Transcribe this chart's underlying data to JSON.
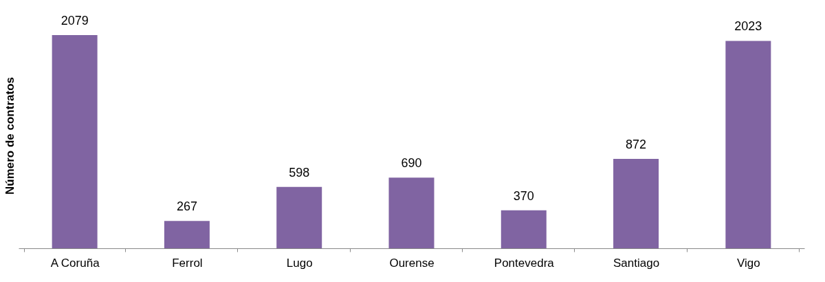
{
  "chart_data": {
    "type": "bar",
    "ylabel": "Número de contratos",
    "categories": [
      "A Coruña",
      "Ferrol",
      "Lugo",
      "Ourense",
      "Pontevedra",
      "Santiago",
      "Vigo"
    ],
    "values": [
      2079,
      267,
      598,
      690,
      370,
      872,
      2023
    ],
    "color": "#8064a2",
    "data_labels": true,
    "grid": false
  }
}
